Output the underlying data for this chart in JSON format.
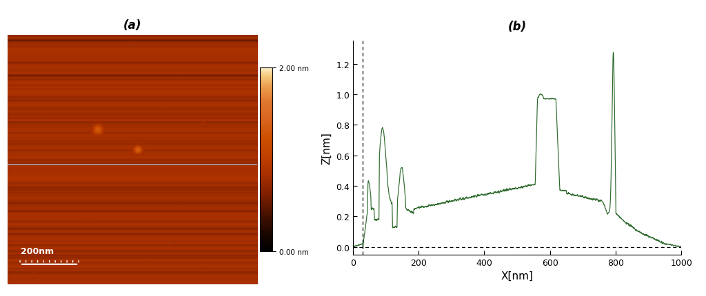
{
  "title_a": "(a)",
  "title_b": "(b)",
  "colorbar_min_label": "0.00 nm",
  "colorbar_max_label": "2.00 nm",
  "xlabel": "X[nm]",
  "ylabel": "Z[nm]",
  "xlim": [
    0,
    1000
  ],
  "ylim": [
    -0.05,
    1.35
  ],
  "yticks": [
    0.0,
    0.2,
    0.4,
    0.6,
    0.8,
    1.0,
    1.2
  ],
  "xticks": [
    0,
    200,
    400,
    600,
    800,
    1000
  ],
  "scale_bar_label": "200nm",
  "line_color": "#2d6a2d",
  "bg_color": "#ffffff",
  "dpi": 100,
  "figsize": [
    10.24,
    4.31
  ]
}
